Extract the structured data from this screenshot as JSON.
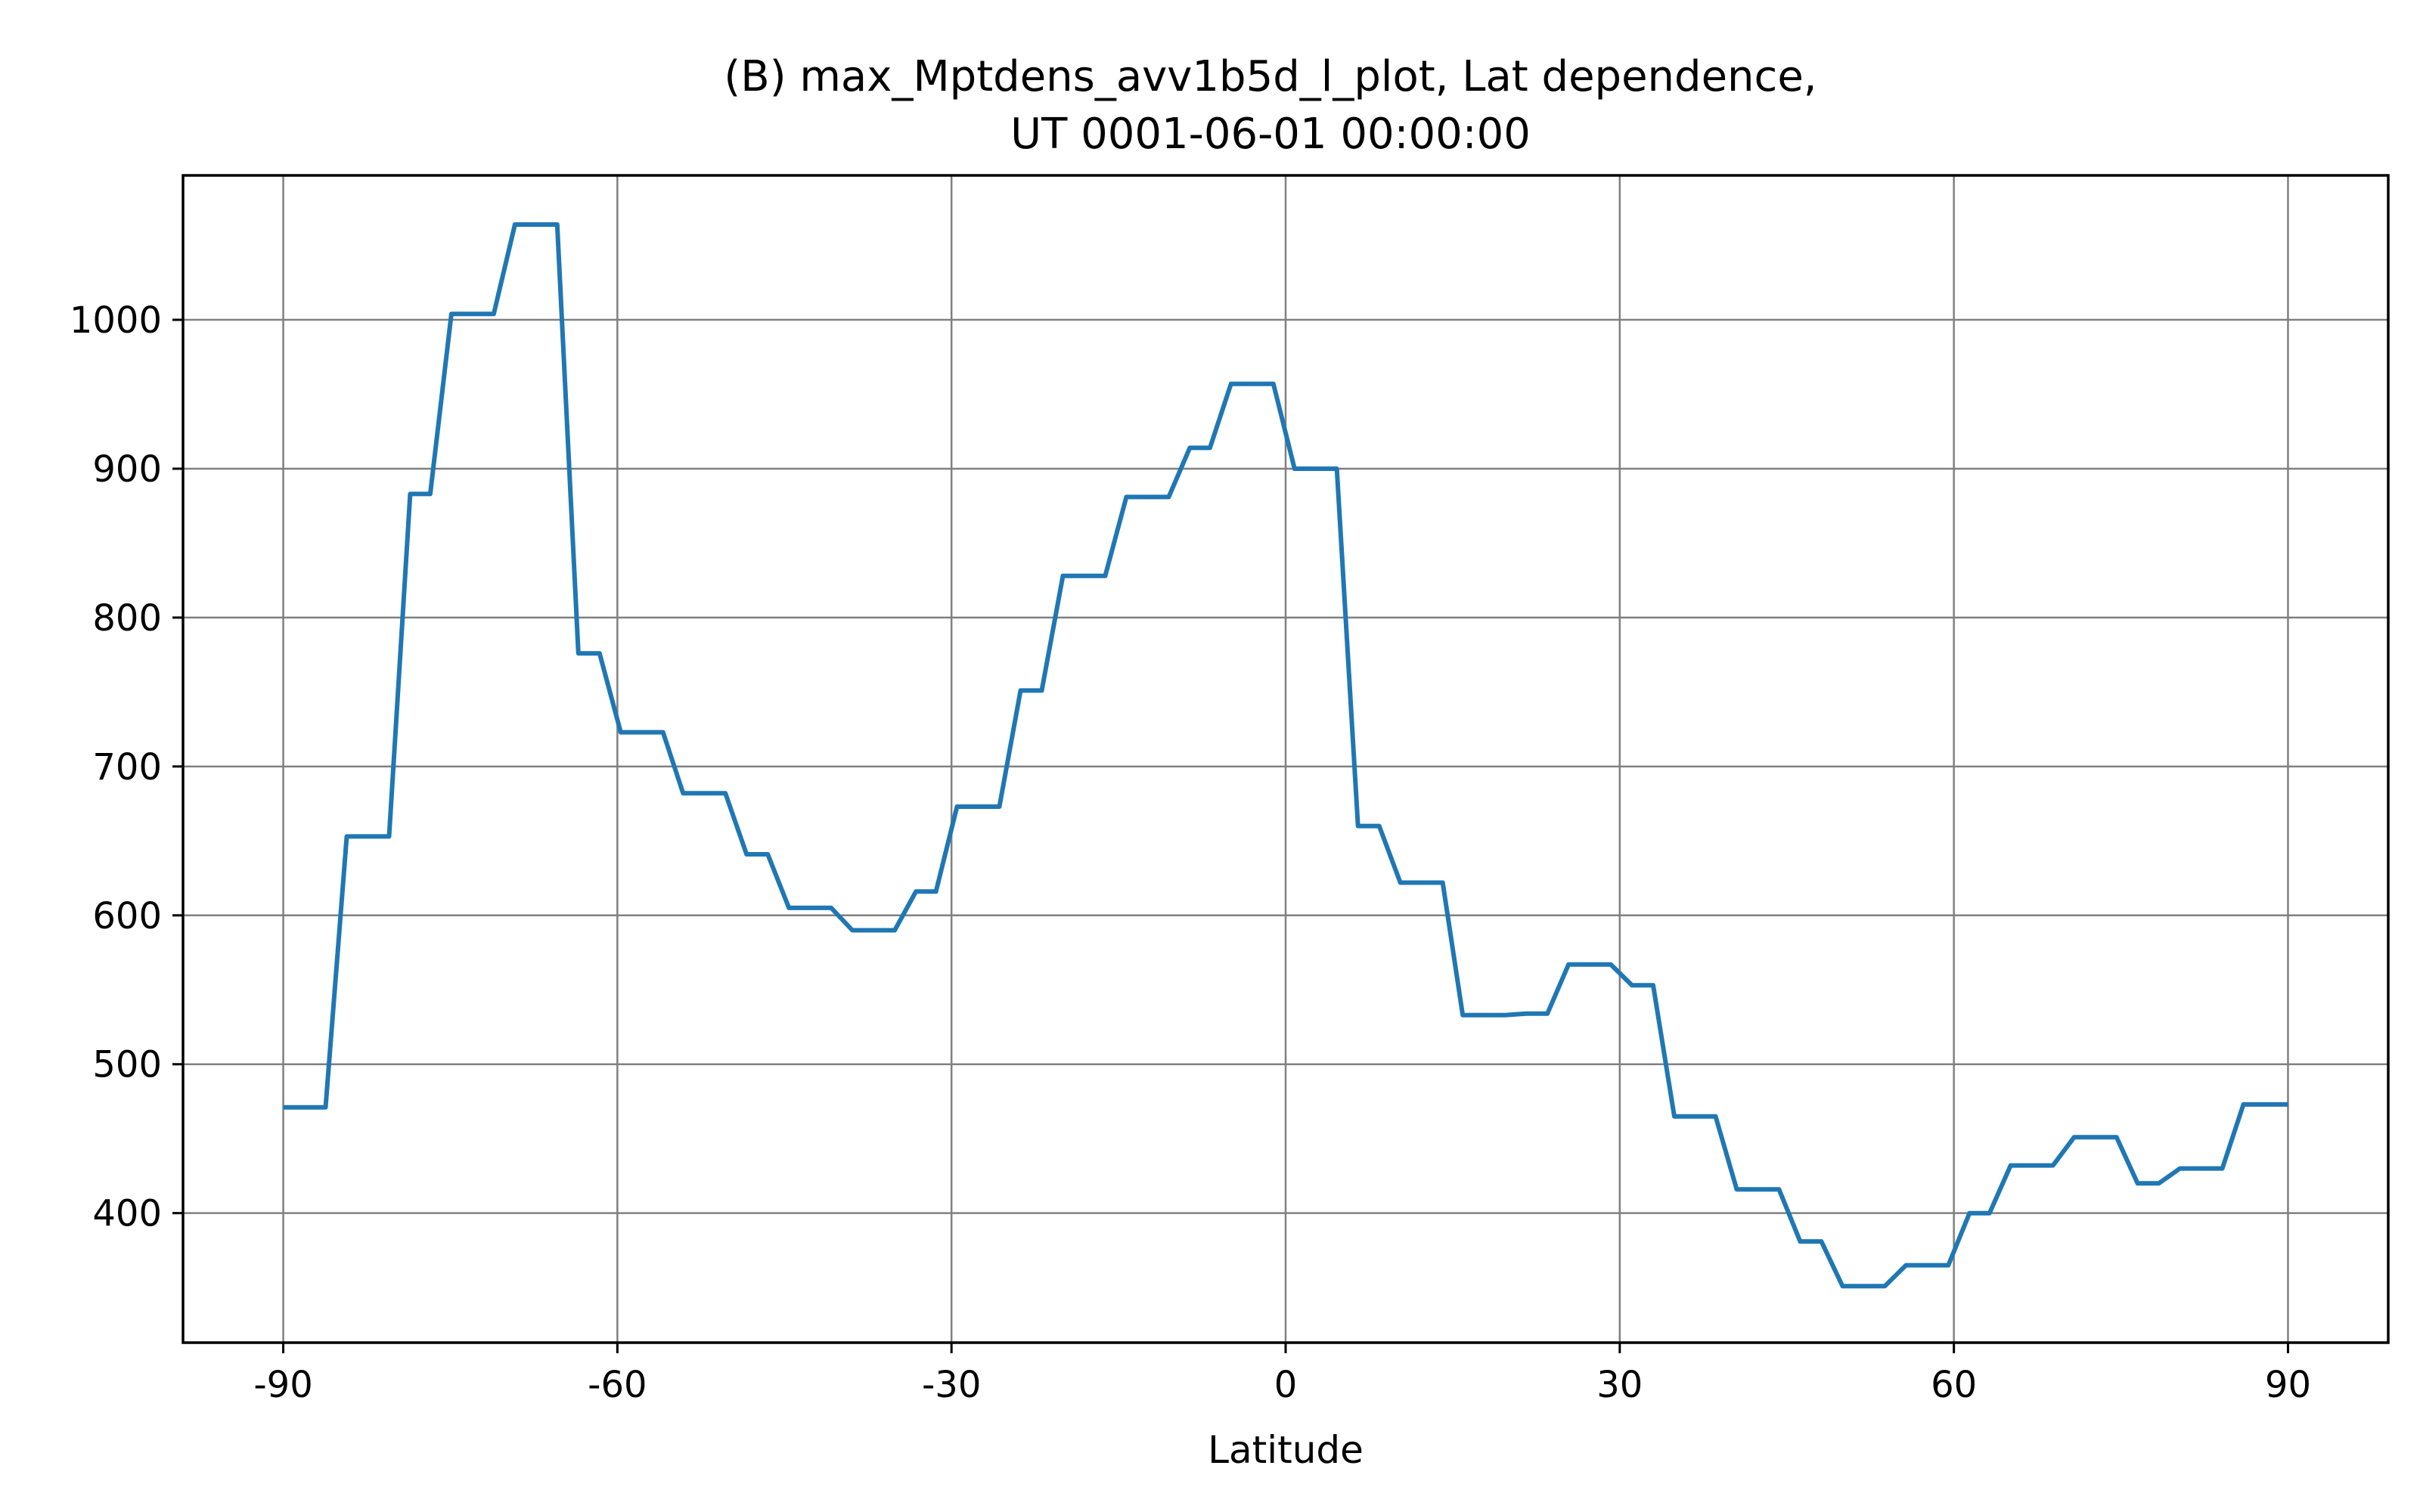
{
  "chart_data": {
    "type": "line",
    "title_lines": [
      "(B) max_Mptdens_avv1b5d_l_plot,  Lat dependence,",
      "UT 0001-06-01 00:00:00"
    ],
    "xlabel": "Latitude",
    "ylabel": "",
    "xlim": [
      -99,
      99
    ],
    "ylim": [
      313,
      1097
    ],
    "xticks": [
      -90,
      -60,
      -30,
      0,
      30,
      60,
      90
    ],
    "xtick_labels": [
      "-90",
      "-60",
      "-30",
      "0",
      "30",
      "60",
      "90"
    ],
    "yticks": [
      400,
      500,
      600,
      700,
      800,
      900,
      1000
    ],
    "ytick_labels": [
      "400",
      "500",
      "600",
      "700",
      "800",
      "900",
      "1000"
    ],
    "grid": true,
    "color": "#1f77b4",
    "x": [
      -90,
      -86.2,
      -84.3,
      -80.5,
      -78.6,
      -76.8,
      -74.9,
      -71.1,
      -69.2,
      -65.4,
      -63.5,
      -61.6,
      -59.7,
      -55.9,
      -54.1,
      -50.3,
      -48.4,
      -46.5,
      -44.6,
      -40.8,
      -38.9,
      -35.1,
      -33.2,
      -31.4,
      -29.5,
      -25.7,
      -23.8,
      -21.9,
      -20.0,
      -16.2,
      -14.3,
      -10.5,
      -8.6,
      -6.8,
      -4.9,
      -1.1,
      0.8,
      4.6,
      6.5,
      8.4,
      10.3,
      14.1,
      15.9,
      19.7,
      21.6,
      23.5,
      25.4,
      29.2,
      31.1,
      33.0,
      34.9,
      38.6,
      40.5,
      44.3,
      46.2,
      48.1,
      50.0,
      53.8,
      55.7,
      59.5,
      61.4,
      63.2,
      65.1,
      68.9,
      70.8,
      74.6,
      76.5,
      78.4,
      80.3,
      84.1,
      86.0,
      90.0
    ],
    "y": [
      471,
      471,
      653,
      653,
      883,
      883,
      1004,
      1004,
      1064,
      1064,
      776,
      776,
      723,
      723,
      682,
      682,
      641,
      641,
      605,
      605,
      590,
      590,
      616,
      616,
      673,
      673,
      751,
      751,
      828,
      828,
      881,
      881,
      914,
      914,
      957,
      957,
      900,
      900,
      660,
      660,
      622,
      622,
      533,
      533,
      534,
      534,
      567,
      567,
      553,
      553,
      465,
      465,
      416,
      416,
      381,
      381,
      351,
      351,
      365,
      365,
      400,
      400,
      432,
      432,
      451,
      451,
      420,
      420,
      430,
      430,
      473,
      473
    ]
  }
}
